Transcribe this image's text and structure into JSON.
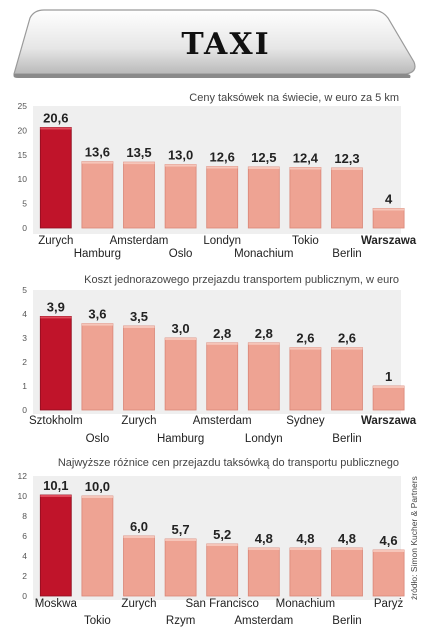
{
  "header": {
    "sign_text": "TAXI"
  },
  "source": "źródło: Simon Kucher & Partners",
  "colors": {
    "highlight": "#c0142a",
    "bar": "#eea393",
    "bar_stroke": "#d98677",
    "panel_bg": "#efefef"
  },
  "chart_data": [
    {
      "type": "bar",
      "title": "Ceny taksówek na świecie, w euro za 5 km",
      "xlabel": "",
      "ylabel": "",
      "ylim": [
        0,
        25
      ],
      "yticks": [
        "0",
        "5",
        "10",
        "15",
        "20",
        "25"
      ],
      "categories": [
        "Zurych",
        "Hamburg",
        "Amsterdam",
        "Oslo",
        "Londyn",
        "Monachium",
        "Tokio",
        "Berlin",
        "Warszawa"
      ],
      "values": [
        20.6,
        13.6,
        13.5,
        13.0,
        12.6,
        12.5,
        12.4,
        12.3,
        4
      ],
      "value_labels": [
        "20,6",
        "13,6",
        "13,5",
        "13,0",
        "12,6",
        "12,5",
        "12,4",
        "12,3",
        "4"
      ],
      "highlight_index": 0,
      "bold_category_index": 8
    },
    {
      "type": "bar",
      "title": "Koszt jednorazowego przejazdu transportem publicznym, w euro",
      "xlabel": "",
      "ylabel": "",
      "ylim": [
        0,
        5
      ],
      "yticks": [
        "0",
        "1",
        "2",
        "3",
        "4",
        "5"
      ],
      "categories": [
        "Sztokholm",
        "Oslo",
        "Zurych",
        "Hamburg",
        "Amsterdam",
        "Londyn",
        "Sydney",
        "Berlin",
        "Warszawa"
      ],
      "values": [
        3.9,
        3.6,
        3.5,
        3.0,
        2.8,
        2.8,
        2.6,
        2.6,
        1
      ],
      "value_labels": [
        "3,9",
        "3,6",
        "3,5",
        "3,0",
        "2,8",
        "2,8",
        "2,6",
        "2,6",
        "1"
      ],
      "highlight_index": 0,
      "bold_category_index": 8
    },
    {
      "type": "bar",
      "title": "Najwyższe różnice cen przejazdu taksówką do transportu publicznego",
      "xlabel": "",
      "ylabel": "",
      "ylim": [
        0,
        12
      ],
      "yticks": [
        "0",
        "2",
        "4",
        "6",
        "8",
        "10",
        "12"
      ],
      "categories": [
        "Moskwa",
        "Tokio",
        "Zurych",
        "Rzym",
        "San Francisco",
        "Amsterdam",
        "Monachium",
        "Berlin",
        "Paryż"
      ],
      "values": [
        10.1,
        10.0,
        6.0,
        5.7,
        5.2,
        4.8,
        4.8,
        4.8,
        4.6
      ],
      "value_labels": [
        "10,1",
        "10,0",
        "6,0",
        "5,7",
        "5,2",
        "4,8",
        "4,8",
        "4,8",
        "4,6"
      ],
      "highlight_index": 0,
      "bold_category_index": -1
    }
  ]
}
